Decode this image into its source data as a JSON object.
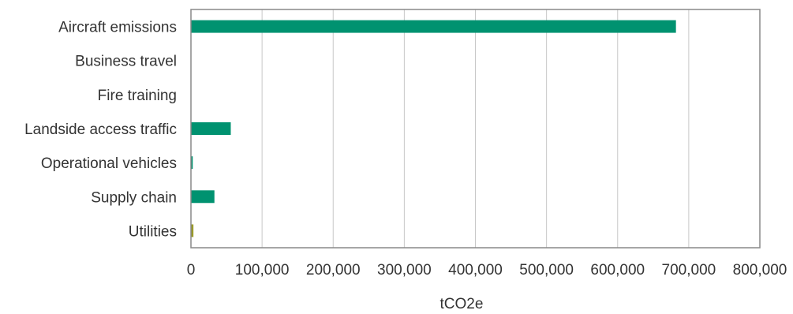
{
  "chart_data": {
    "type": "bar",
    "orientation": "horizontal",
    "title": "",
    "xlabel": "tCO2e",
    "ylabel": "",
    "categories": [
      "Aircraft emissions",
      "Business travel",
      "Fire training",
      "Landside access traffic",
      "Operational vehicles",
      "Supply chain",
      "Utilities"
    ],
    "values": [
      682000,
      0,
      0,
      56000,
      2500,
      33000,
      3500
    ],
    "bar_colors": [
      "#009270",
      "#009270",
      "#009270",
      "#009270",
      "#009270",
      "#009270",
      "#9a9a2a"
    ],
    "xlim": [
      0,
      800000
    ],
    "x_ticks": [
      0,
      100000,
      200000,
      300000,
      400000,
      500000,
      600000,
      700000,
      800000
    ],
    "x_tick_labels": [
      "0",
      "100,000",
      "200,000",
      "300,000",
      "400,000",
      "500,000",
      "600,000",
      "700,000",
      "800,000"
    ],
    "grid": "vertical",
    "legend": "none"
  }
}
